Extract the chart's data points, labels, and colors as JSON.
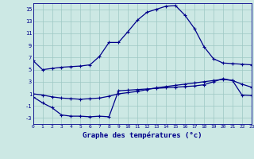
{
  "title": "Graphe des températures (°c)",
  "bg_color": "#cce8e4",
  "line_color": "#00008b",
  "hours": [
    0,
    1,
    2,
    3,
    4,
    5,
    6,
    7,
    8,
    9,
    10,
    11,
    12,
    13,
    14,
    15,
    16,
    17,
    18,
    19,
    20,
    21,
    22,
    23
  ],
  "temp_high": [
    6.5,
    5.0,
    5.2,
    5.4,
    5.5,
    5.6,
    5.8,
    7.2,
    9.5,
    9.5,
    11.3,
    13.2,
    14.5,
    15.0,
    15.5,
    15.6,
    14.0,
    11.8,
    8.8,
    6.8,
    6.1,
    6.0,
    5.9,
    5.8
  ],
  "temp_low": [
    0.5,
    -0.5,
    -1.3,
    -2.5,
    -2.7,
    -2.7,
    -2.8,
    -2.7,
    -2.8,
    1.5,
    1.6,
    1.7,
    1.8,
    1.9,
    2.0,
    2.1,
    2.2,
    2.3,
    2.5,
    3.0,
    3.5,
    3.2,
    0.8,
    0.7
  ],
  "temp_mid": [
    1.0,
    0.8,
    0.5,
    0.3,
    0.2,
    0.1,
    0.2,
    0.3,
    0.6,
    1.0,
    1.2,
    1.4,
    1.7,
    2.0,
    2.2,
    2.4,
    2.6,
    2.8,
    3.0,
    3.2,
    3.4,
    3.2,
    2.6,
    2.1
  ],
  "xlim": [
    0,
    23
  ],
  "ylim": [
    -4,
    16
  ],
  "yticks": [
    -3,
    -1,
    1,
    3,
    5,
    7,
    9,
    11,
    13,
    15
  ],
  "grid_color": "#9ec8c4",
  "marker": "+"
}
